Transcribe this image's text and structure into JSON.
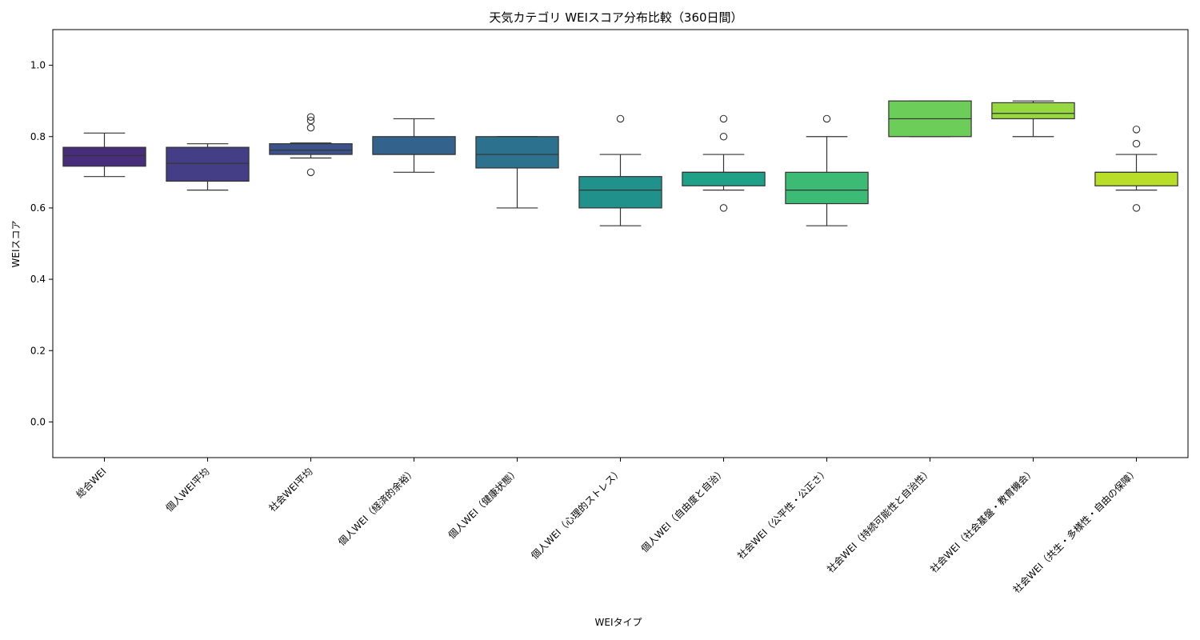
{
  "chart_data": {
    "type": "box",
    "title": "天気カテゴリ WEIスコア分布比較（360日間）",
    "xlabel": "WEIタイプ",
    "ylabel": "WEIスコア",
    "ylim": [
      -0.1,
      1.1
    ],
    "yticks": [
      0.0,
      0.2,
      0.4,
      0.6,
      0.8,
      1.0
    ],
    "ytick_labels": [
      "0.0",
      "0.2",
      "0.4",
      "0.6",
      "0.8",
      "1.0"
    ],
    "grid": false,
    "legend": "none",
    "categories": [
      "総合WEI",
      "個人WEI平均",
      "社会WEI平均",
      "個人WEI（経済的余裕）",
      "個人WEI（健康状態）",
      "個人WEI（心理的ストレス）",
      "個人WEI（自由度と自治）",
      "社会WEI（公平性・公正さ）",
      "社会WEI（持続可能性と自治性）",
      "社会WEI（社会基盤・教育機会）",
      "社会WEI（共生・多様性・自由の保障）"
    ],
    "boxes": [
      {
        "min": 0.688,
        "q1": 0.717,
        "median": 0.747,
        "q3": 0.77,
        "max": 0.81,
        "color": "#472d7b",
        "outliers": []
      },
      {
        "min": 0.65,
        "q1": 0.675,
        "median": 0.725,
        "q3": 0.77,
        "max": 0.78,
        "color": "#433e85",
        "outliers": []
      },
      {
        "min": 0.74,
        "q1": 0.75,
        "median": 0.762,
        "q3": 0.78,
        "max": 0.782,
        "color": "#3b528b",
        "outliers": [
          0.855,
          0.845,
          0.825,
          0.7
        ]
      },
      {
        "min": 0.7,
        "q1": 0.75,
        "median": 0.75,
        "q3": 0.8,
        "max": 0.85,
        "color": "#33638d",
        "outliers": []
      },
      {
        "min": 0.6,
        "q1": 0.712,
        "median": 0.75,
        "q3": 0.8,
        "max": 0.8,
        "color": "#2c728e",
        "outliers": []
      },
      {
        "min": 0.55,
        "q1": 0.6,
        "median": 0.65,
        "q3": 0.688,
        "max": 0.75,
        "color": "#21918c",
        "outliers": [
          0.85
        ]
      },
      {
        "min": 0.65,
        "q1": 0.662,
        "median": 0.7,
        "q3": 0.7,
        "max": 0.75,
        "color": "#1fa188",
        "outliers": [
          0.85,
          0.8,
          0.6
        ]
      },
      {
        "min": 0.55,
        "q1": 0.612,
        "median": 0.65,
        "q3": 0.7,
        "max": 0.8,
        "color": "#3cbb75",
        "outliers": [
          0.85
        ]
      },
      {
        "min": 0.8,
        "q1": 0.8,
        "median": 0.85,
        "q3": 0.9,
        "max": 0.9,
        "color": "#6cce59",
        "outliers": []
      },
      {
        "min": 0.8,
        "q1": 0.85,
        "median": 0.865,
        "q3": 0.895,
        "max": 0.9,
        "color": "#95d840",
        "outliers": []
      },
      {
        "min": 0.65,
        "q1": 0.662,
        "median": 0.7,
        "q3": 0.7,
        "max": 0.75,
        "color": "#b8de29",
        "outliers": [
          0.82,
          0.78,
          0.6
        ]
      }
    ]
  }
}
